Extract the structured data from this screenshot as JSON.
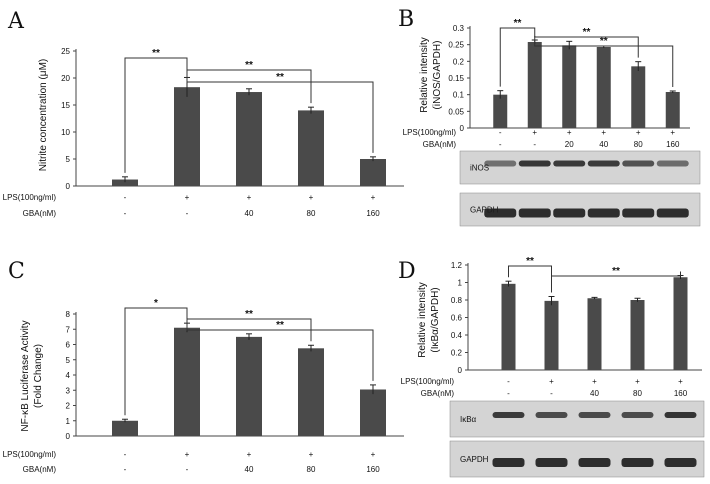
{
  "chart_data": [
    {
      "panel": "A",
      "type": "bar",
      "ylabel": "Nitrite concentration (μM)",
      "yticks": [
        "0",
        "5",
        "10",
        "15",
        "20",
        "25"
      ],
      "ylim": [
        0,
        25
      ],
      "values": [
        1.2,
        18.3,
        17.4,
        14.0,
        5.0
      ],
      "errors": [
        0.5,
        1.8,
        0.6,
        0.6,
        0.4
      ],
      "rows": [
        {
          "label": "LPS(100ng/ml)",
          "cells": [
            "-",
            "+",
            "+",
            "+",
            "+"
          ]
        },
        {
          "label": "GBA(nM)",
          "cells": [
            "-",
            "-",
            "40",
            "80",
            "160"
          ]
        }
      ],
      "significance": [
        {
          "from": 0,
          "to": 1,
          "text": "**"
        },
        {
          "from": 1,
          "to": 3,
          "text": "**"
        },
        {
          "from": 1,
          "to": 4,
          "text": "**"
        }
      ]
    },
    {
      "panel": "B",
      "type": "bar",
      "ylabel": "Relative intensity (iNOS/GAPDH)",
      "yticks": [
        "0",
        "0.05",
        "0.1",
        "0.15",
        "0.2",
        "0.25",
        "0.3"
      ],
      "ylim": [
        0,
        0.3
      ],
      "values": [
        0.1,
        0.258,
        0.248,
        0.243,
        0.185,
        0.108
      ],
      "errors": [
        0.012,
        0.006,
        0.012,
        0.003,
        0.014,
        0.003
      ],
      "rows": [
        {
          "label": "LPS(100ng/ml)",
          "cells": [
            "-",
            "+",
            "+",
            "+",
            "+",
            "+"
          ]
        },
        {
          "label": "GBA(nM)",
          "cells": [
            "-",
            "-",
            "20",
            "40",
            "80",
            "160"
          ]
        }
      ],
      "significance": [
        {
          "from": 0,
          "to": 1,
          "text": "**"
        },
        {
          "from": 1,
          "to": 4,
          "text": "**"
        },
        {
          "from": 1,
          "to": 5,
          "text": "**"
        }
      ],
      "blots": [
        "iNOS",
        "GAPDH"
      ]
    },
    {
      "panel": "C",
      "type": "bar",
      "ylabel": "NF-κB Luciferase Activity (Fold Change)",
      "yticks": [
        "0",
        "1",
        "2",
        "3",
        "4",
        "5",
        "6",
        "7",
        "8"
      ],
      "ylim": [
        0,
        8
      ],
      "values": [
        1.0,
        7.1,
        6.5,
        5.75,
        3.05
      ],
      "errors": [
        0.1,
        0.3,
        0.2,
        0.2,
        0.3
      ],
      "rows": [
        {
          "label": "LPS(100ng/ml)",
          "cells": [
            "-",
            "+",
            "+",
            "+",
            "+"
          ]
        },
        {
          "label": "GBA(nM)",
          "cells": [
            "-",
            "-",
            "40",
            "80",
            "160"
          ]
        }
      ],
      "significance": [
        {
          "from": 0,
          "to": 1,
          "text": "*"
        },
        {
          "from": 1,
          "to": 3,
          "text": "**"
        },
        {
          "from": 1,
          "to": 4,
          "text": "**"
        }
      ]
    },
    {
      "panel": "D",
      "type": "bar",
      "ylabel": "Relative intensity (IκBα/GAPDH)",
      "yticks": [
        "0",
        "0.2",
        "0.4",
        "0.6",
        "0.8",
        "1",
        "1.2"
      ],
      "ylim": [
        0,
        1.2
      ],
      "values": [
        0.985,
        0.79,
        0.82,
        0.8,
        1.06
      ],
      "errors": [
        0.03,
        0.05,
        0.01,
        0.02,
        0.02
      ],
      "rows": [
        {
          "label": "LPS(100ng/ml)",
          "cells": [
            "-",
            "+",
            "+",
            "+",
            "+"
          ]
        },
        {
          "label": "GBA(nM)",
          "cells": [
            "-",
            "-",
            "40",
            "80",
            "160"
          ]
        }
      ],
      "significance": [
        {
          "from": 0,
          "to": 1,
          "text": "**"
        },
        {
          "from": 1,
          "to": 4,
          "text": "**"
        }
      ],
      "blots": [
        "IκBα",
        "GAPDH"
      ]
    }
  ],
  "colors": {
    "bar": "#4a4a4a",
    "axis": "#444444",
    "blot_bg": "#d4d4d4",
    "band": "#1e1e1e"
  }
}
